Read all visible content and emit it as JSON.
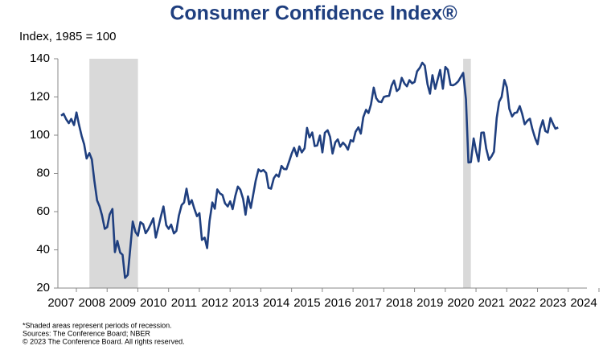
{
  "chart_data": {
    "type": "line",
    "title": "Consumer Confidence Index®",
    "y_label": "Index, 1985 = 100",
    "notes": [
      "*Shaded areas represent periods of recession.",
      "Sources: The Conference Board; NBER",
      "© 2023 The Conference Board. All rights reserved."
    ],
    "color": "#1f3f7f",
    "recession_color": "#d9d9d9",
    "recessions": [
      [
        2007.92,
        2009.5
      ],
      [
        2020.08,
        2020.33
      ]
    ],
    "xlim": [
      2007,
      2024
    ],
    "xticks": [
      2007,
      2008,
      2009,
      2010,
      2011,
      2012,
      2013,
      2014,
      2015,
      2016,
      2017,
      2018,
      2019,
      2020,
      2021,
      2022,
      2023,
      2024
    ],
    "ylim": [
      20,
      140
    ],
    "yticks": [
      20,
      40,
      60,
      80,
      100,
      120,
      140
    ],
    "x": [
      2007.0,
      2007.08,
      2007.17,
      2007.25,
      2007.33,
      2007.42,
      2007.5,
      2007.58,
      2007.67,
      2007.75,
      2007.83,
      2007.92,
      2008.0,
      2008.08,
      2008.17,
      2008.25,
      2008.33,
      2008.42,
      2008.5,
      2008.58,
      2008.67,
      2008.75,
      2008.83,
      2008.92,
      2009.0,
      2009.08,
      2009.17,
      2009.25,
      2009.33,
      2009.42,
      2009.5,
      2009.58,
      2009.67,
      2009.75,
      2009.83,
      2009.92,
      2010.0,
      2010.08,
      2010.17,
      2010.25,
      2010.33,
      2010.42,
      2010.5,
      2010.58,
      2010.67,
      2010.75,
      2010.83,
      2010.92,
      2011.0,
      2011.08,
      2011.17,
      2011.25,
      2011.33,
      2011.42,
      2011.5,
      2011.58,
      2011.67,
      2011.75,
      2011.83,
      2011.92,
      2012.0,
      2012.08,
      2012.17,
      2012.25,
      2012.33,
      2012.42,
      2012.5,
      2012.58,
      2012.67,
      2012.75,
      2012.83,
      2012.92,
      2013.0,
      2013.08,
      2013.17,
      2013.25,
      2013.33,
      2013.42,
      2013.5,
      2013.58,
      2013.67,
      2013.75,
      2013.83,
      2013.92,
      2014.0,
      2014.08,
      2014.17,
      2014.25,
      2014.33,
      2014.42,
      2014.5,
      2014.58,
      2014.67,
      2014.75,
      2014.83,
      2014.92,
      2015.0,
      2015.08,
      2015.17,
      2015.25,
      2015.33,
      2015.42,
      2015.5,
      2015.58,
      2015.67,
      2015.75,
      2015.83,
      2015.92,
      2016.0,
      2016.08,
      2016.17,
      2016.25,
      2016.33,
      2016.42,
      2016.5,
      2016.58,
      2016.67,
      2016.75,
      2016.83,
      2016.92,
      2017.0,
      2017.08,
      2017.17,
      2017.25,
      2017.33,
      2017.42,
      2017.5,
      2017.58,
      2017.67,
      2017.75,
      2017.83,
      2017.92,
      2018.0,
      2018.08,
      2018.17,
      2018.25,
      2018.33,
      2018.42,
      2018.5,
      2018.58,
      2018.67,
      2018.75,
      2018.83,
      2018.92,
      2019.0,
      2019.08,
      2019.17,
      2019.25,
      2019.33,
      2019.42,
      2019.5,
      2019.58,
      2019.67,
      2019.75,
      2019.83,
      2019.92,
      2020.0,
      2020.08,
      2020.17,
      2020.25,
      2020.33,
      2020.42,
      2020.5,
      2020.58,
      2020.67,
      2020.75,
      2020.83,
      2020.92,
      2021.0,
      2021.08,
      2021.17,
      2021.25,
      2021.33,
      2021.42,
      2021.5,
      2021.58,
      2021.67,
      2021.75,
      2021.83,
      2021.92,
      2022.0,
      2022.08,
      2022.17,
      2022.25,
      2022.33,
      2022.42,
      2022.5,
      2022.58,
      2022.67,
      2022.75,
      2022.83,
      2022.92,
      2023.0,
      2023.08,
      2023.17
    ],
    "values": [
      110.2,
      111.2,
      108.2,
      106.3,
      108.5,
      105.3,
      111.9,
      105.6,
      99.5,
      95.2,
      87.8,
      90.6,
      87.3,
      76.4,
      65.9,
      62.8,
      58.1,
      51.0,
      51.9,
      58.5,
      61.4,
      38.8,
      44.7,
      38.6,
      37.4,
      25.3,
      26.9,
      40.8,
      54.8,
      49.3,
      47.4,
      54.5,
      53.4,
      48.7,
      50.6,
      53.6,
      56.5,
      46.4,
      52.3,
      57.7,
      62.7,
      52.9,
      51.0,
      53.2,
      48.6,
      49.9,
      57.8,
      63.4,
      64.8,
      72.0,
      63.8,
      66.0,
      61.7,
      57.6,
      59.2,
      45.2,
      46.4,
      40.9,
      55.2,
      64.8,
      61.5,
      71.6,
      69.5,
      68.7,
      64.4,
      62.7,
      65.4,
      61.3,
      68.4,
      73.1,
      71.5,
      66.7,
      58.4,
      68.0,
      61.9,
      69.0,
      76.2,
      82.1,
      81.0,
      81.8,
      80.2,
      72.4,
      72.0,
      77.5,
      79.4,
      78.3,
      83.9,
      82.3,
      82.2,
      86.4,
      90.3,
      93.4,
      89.0,
      94.1,
      91.0,
      93.1,
      103.8,
      98.8,
      101.4,
      94.3,
      94.6,
      99.8,
      91.0,
      101.3,
      102.6,
      99.1,
      90.4,
      96.3,
      97.8,
      94.0,
      96.1,
      94.7,
      92.4,
      97.4,
      96.7,
      101.8,
      104.1,
      100.8,
      109.4,
      113.3,
      111.6,
      116.1,
      124.9,
      119.4,
      117.6,
      117.3,
      120.0,
      120.4,
      120.6,
      125.9,
      128.6,
      123.1,
      124.3,
      130.0,
      127.0,
      125.6,
      128.8,
      127.1,
      127.9,
      133.4,
      135.3,
      137.9,
      136.4,
      126.6,
      121.7,
      131.4,
      124.2,
      129.2,
      134.1,
      124.3,
      135.7,
      134.2,
      126.3,
      126.1,
      126.8,
      128.2,
      130.4,
      132.6,
      118.8,
      85.7,
      85.9,
      98.3,
      91.7,
      86.3,
      101.3,
      101.4,
      92.9,
      87.1,
      88.9,
      91.3,
      109.0,
      117.5,
      120.0,
      128.9,
      125.1,
      113.8,
      109.8,
      111.6,
      111.9,
      115.2,
      111.1,
      105.7,
      107.6,
      108.6,
      103.2,
      98.4,
      95.3,
      103.2,
      107.8,
      102.2,
      101.4,
      109.0,
      106.0,
      103.4,
      104.0
    ]
  }
}
